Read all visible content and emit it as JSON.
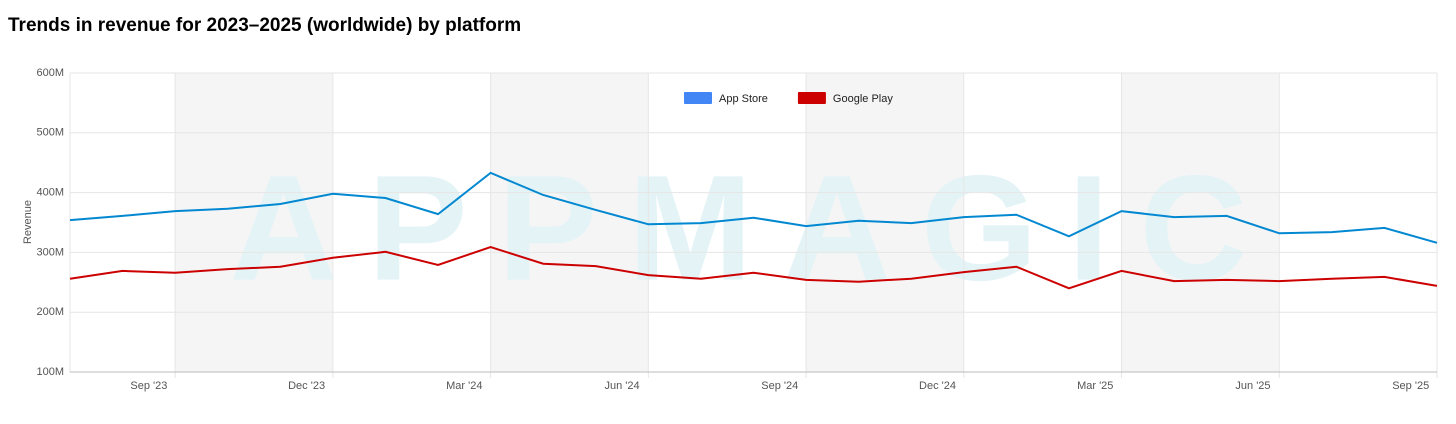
{
  "chart_data": {
    "type": "line",
    "title": "Trends in revenue for 2023–2025 (worldwide) by platform",
    "watermark": "APPMAGIC",
    "y_label": "Revenue",
    "categories": [
      null,
      "Sep '23",
      null,
      null,
      "Dec '23",
      null,
      null,
      "Mar '24",
      null,
      null,
      "Jun '24",
      null,
      null,
      "Sep '24",
      null,
      null,
      "Dec '24",
      null,
      null,
      "Mar '25",
      null,
      null,
      "Jun '25",
      null,
      null,
      "Sep '25",
      null
    ],
    "series": [
      {
        "name": "App Store",
        "color": "#0288d1",
        "legend_color": "#4285f4",
        "values": [
          354000000,
          361000000,
          369000000,
          373000000,
          381000000,
          398000000,
          391000000,
          364000000,
          433000000,
          396000000,
          371000000,
          347000000,
          349000000,
          358000000,
          344000000,
          353000000,
          349000000,
          359000000,
          363000000,
          327000000,
          369000000,
          359000000,
          361000000,
          332000000,
          334000000,
          341000000,
          316000000
        ]
      },
      {
        "name": "Google Play",
        "color": "#cc0000",
        "legend_color": "#cc0000",
        "values": [
          256000000,
          269000000,
          266000000,
          272000000,
          276000000,
          291000000,
          301000000,
          279000000,
          309000000,
          281000000,
          277000000,
          262000000,
          256000000,
          266000000,
          254000000,
          251000000,
          256000000,
          267000000,
          276000000,
          240000000,
          269000000,
          252000000,
          254000000,
          252000000,
          256000000,
          259000000,
          244000000
        ]
      }
    ],
    "ylim": [
      100000000,
      600000000
    ],
    "yticks": [
      {
        "value": 100000000,
        "label": "100M"
      },
      {
        "value": 200000000,
        "label": "200M"
      },
      {
        "value": 300000000,
        "label": "300M"
      },
      {
        "value": 400000000,
        "label": "400M"
      },
      {
        "value": 500000000,
        "label": "500M"
      },
      {
        "value": 600000000,
        "label": "600M"
      }
    ],
    "grid": true,
    "legend": "top"
  }
}
